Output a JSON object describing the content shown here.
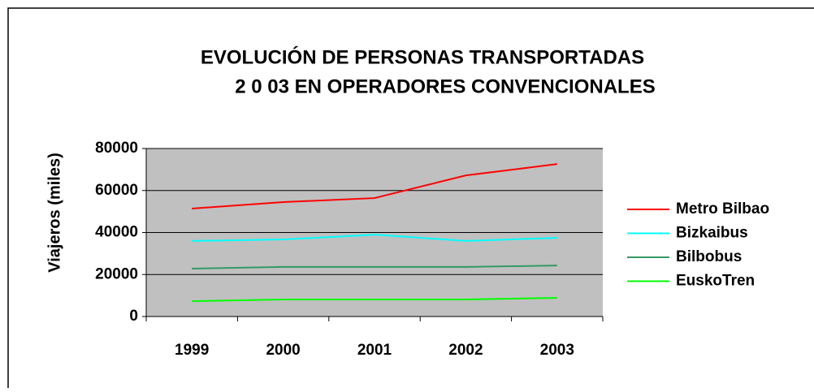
{
  "chart_data": {
    "type": "line",
    "title": "EVOLUCIÓN DE PERSONAS TRANSPORTADAS",
    "subtitle": "2 0 03  EN OPERADORES CONVENCIONALES",
    "y_label": "Viajeros  (miles)",
    "categories": [
      "1999",
      "2000",
      "2001",
      "2002",
      "2003"
    ],
    "series": [
      {
        "name": "Metro Bilbao",
        "color": "#ff0000",
        "values": [
          51400,
          54500,
          56400,
          67200,
          72600
        ]
      },
      {
        "name": "Bizkaibus",
        "color": "#00ffff",
        "values": [
          36000,
          36700,
          39000,
          36000,
          37500
        ]
      },
      {
        "name": "Bilbobus",
        "color": "#339966",
        "values": [
          22800,
          23600,
          23600,
          23600,
          24300
        ]
      },
      {
        "name": "EuskoTren",
        "color": "#00ff00",
        "values": [
          7300,
          8100,
          8100,
          8100,
          8900
        ]
      }
    ],
    "ylim": [
      0,
      80000
    ],
    "yticks": [
      0,
      20000,
      40000,
      60000,
      80000
    ],
    "grid": true,
    "legend": "right"
  }
}
